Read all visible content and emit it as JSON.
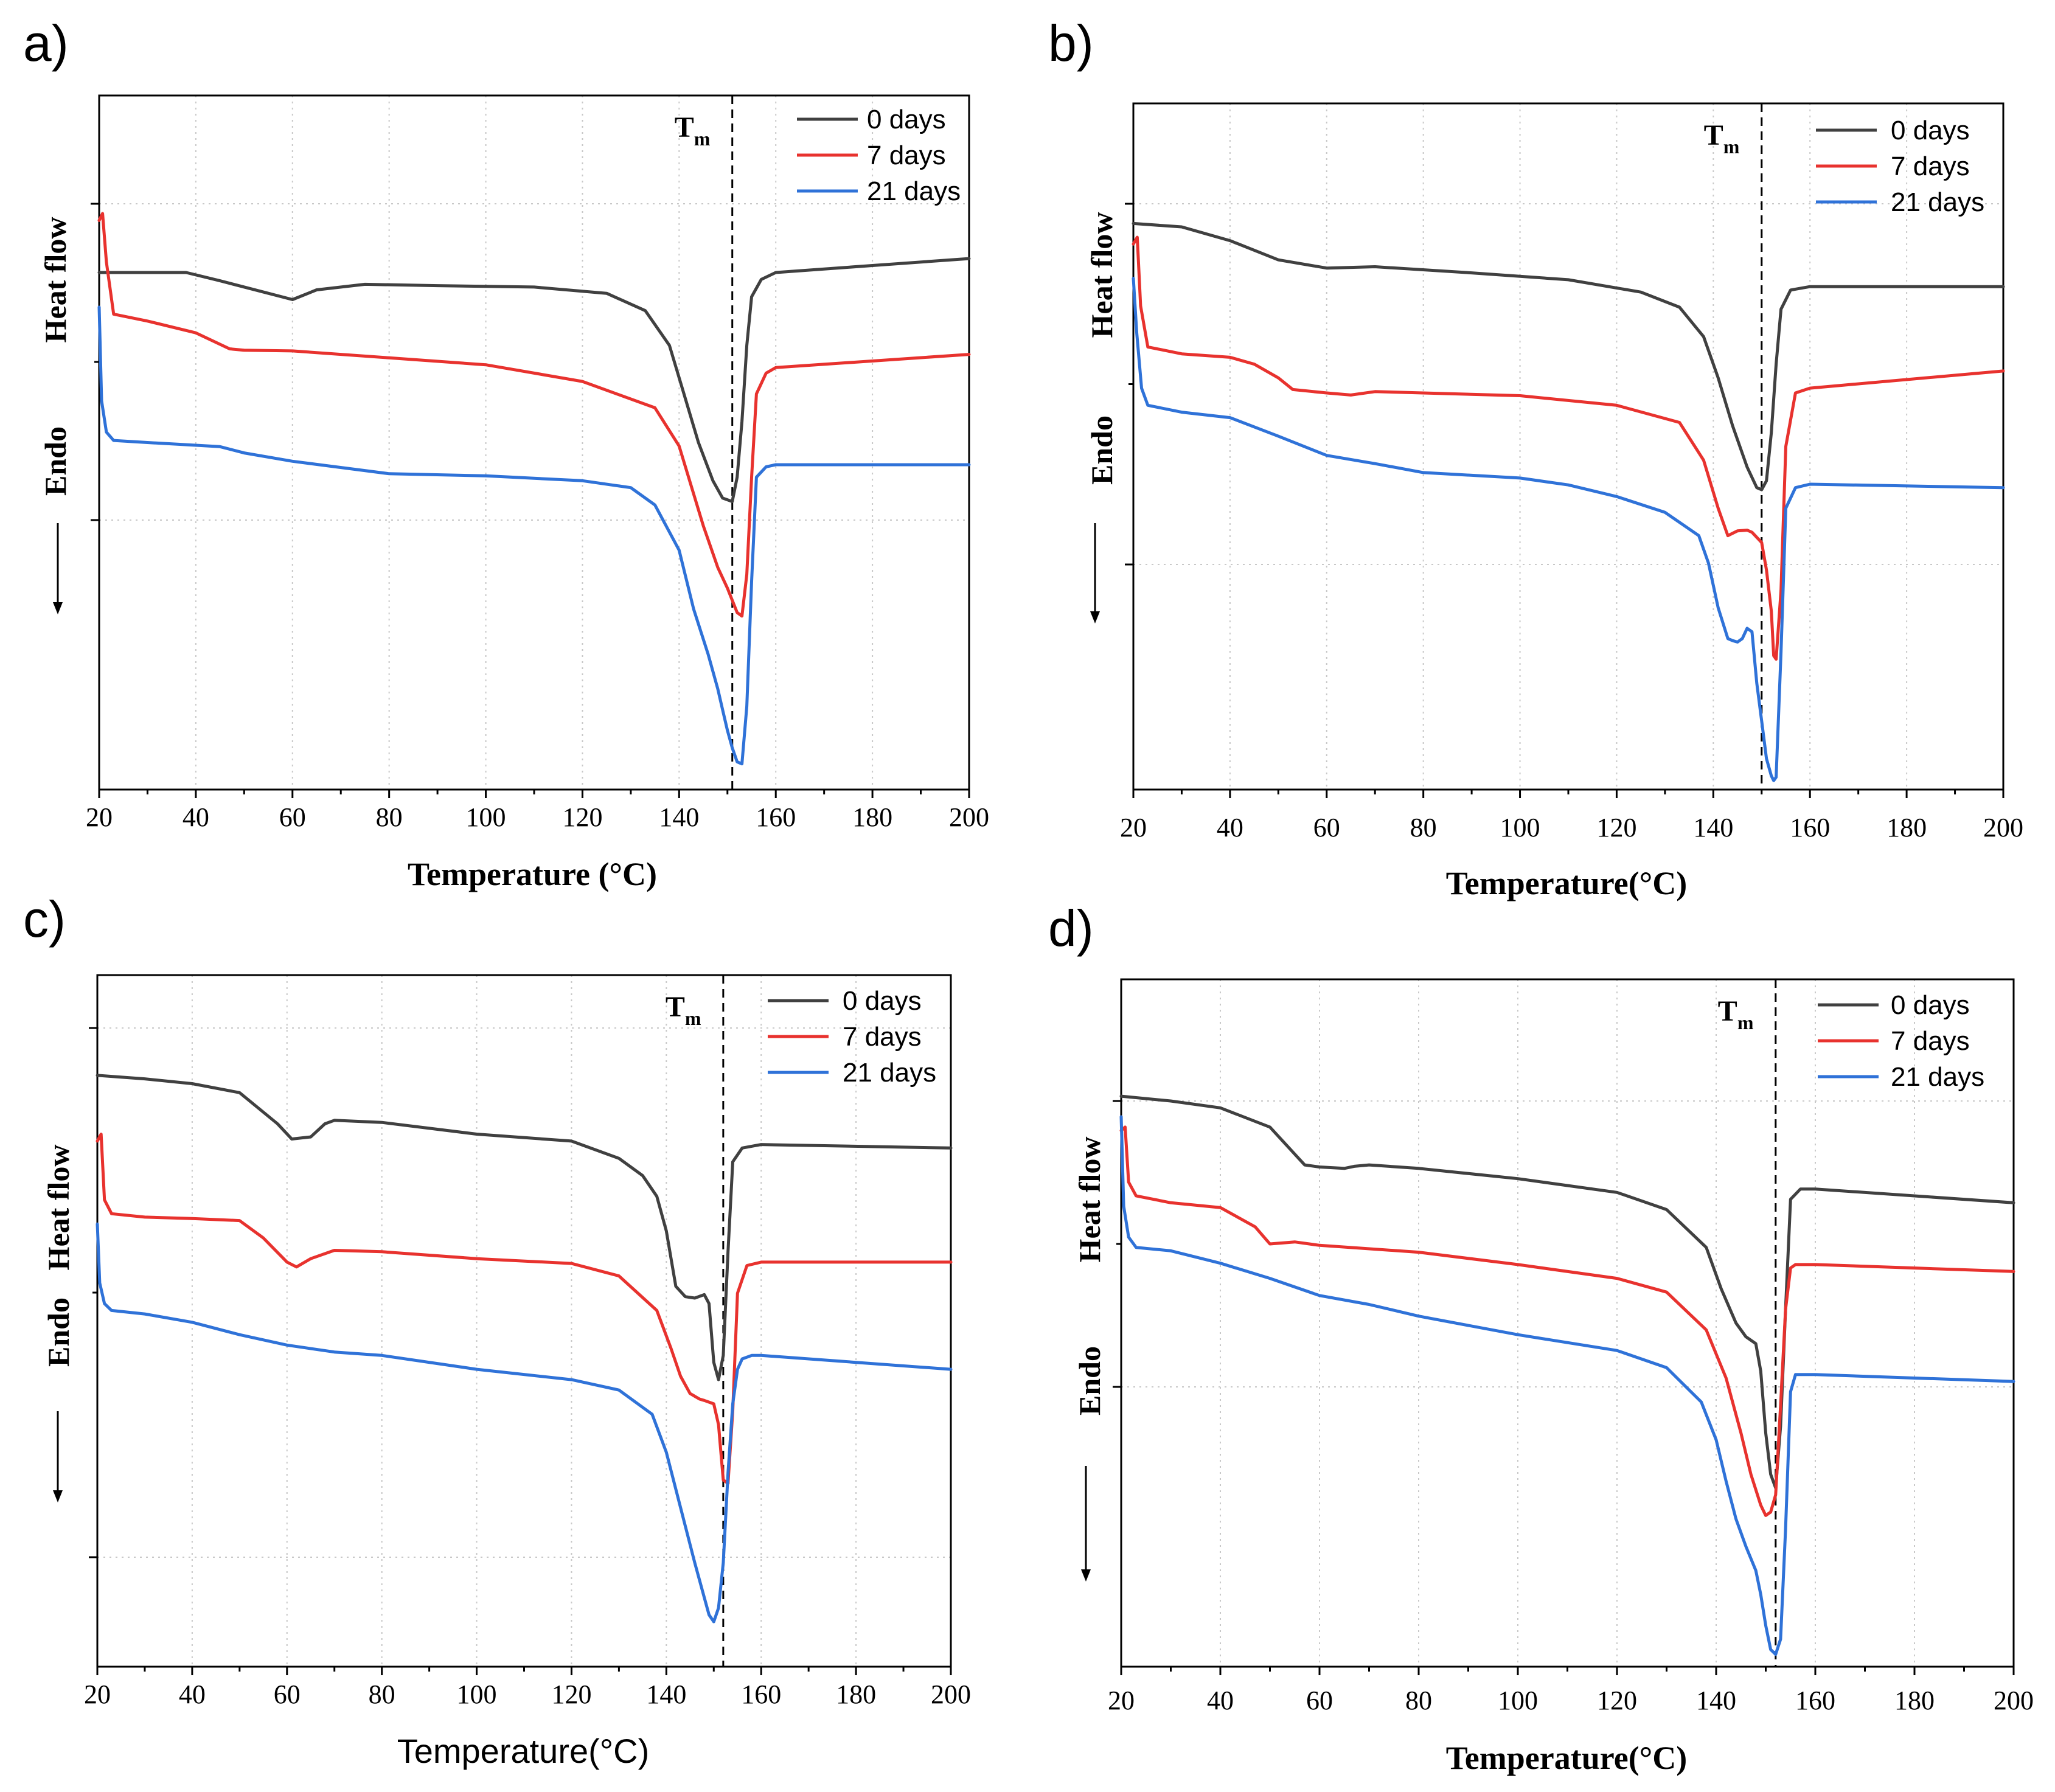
{
  "chart_data": [
    {
      "panel": "a)",
      "type": "line",
      "title": "",
      "xlabel": "Temperature (°C)",
      "ylabel_top": "Heat flow",
      "ylabel_bottom": "Endo",
      "xlim": [
        20,
        200
      ],
      "ylim": [
        0,
        100
      ],
      "xticks": [
        20,
        40,
        60,
        80,
        100,
        120,
        140,
        160,
        180,
        200
      ],
      "tm": {
        "label": "T",
        "sub": "m",
        "x": 151
      },
      "legend_position": "top-right",
      "series": [
        {
          "name": "0 days",
          "color": "#404040",
          "x": [
            20,
            38,
            45,
            55,
            60,
            65,
            75,
            90,
            110,
            125,
            133,
            138,
            141,
            144,
            147,
            149,
            151,
            152,
            153,
            154,
            155,
            157,
            160,
            180,
            200
          ],
          "y": [
            74.5,
            74.5,
            73.3,
            71.5,
            70.6,
            72,
            72.8,
            72.6,
            72.4,
            71.5,
            69,
            64,
            57,
            50,
            44.5,
            42,
            41.5,
            45,
            53,
            64,
            71,
            73.5,
            74.5,
            75.5,
            76.5
          ]
        },
        {
          "name": "7 days",
          "color": "#e8322e",
          "x": [
            20,
            20.7,
            21.5,
            23,
            30,
            40,
            47,
            50,
            60,
            80,
            100,
            120,
            135,
            140,
            145,
            148,
            150,
            152,
            153,
            154,
            155,
            156,
            158,
            160,
            200
          ],
          "y": [
            82,
            83,
            76,
            68.5,
            67.5,
            65.8,
            63.5,
            63.3,
            63.2,
            62.2,
            61.2,
            58.8,
            55,
            49.5,
            38,
            32,
            29,
            25.5,
            25,
            31,
            45,
            57,
            60,
            60.8,
            62.7
          ]
        },
        {
          "name": "21 days",
          "color": "#2f72d8",
          "x": [
            20,
            20.5,
            21.5,
            23,
            30,
            45,
            50,
            60,
            80,
            100,
            120,
            130,
            135,
            140,
            143,
            146,
            148,
            149,
            150,
            151,
            152,
            153,
            154,
            155,
            156,
            158,
            160,
            170,
            200
          ],
          "y": [
            69.5,
            56,
            51.5,
            50.3,
            50,
            49.4,
            48.5,
            47.3,
            45.5,
            45.2,
            44.5,
            43.5,
            41,
            34.5,
            26,
            19.5,
            14.5,
            11.5,
            8.5,
            6,
            4,
            3.7,
            12,
            30,
            45,
            46.5,
            46.8,
            46.8,
            46.8
          ]
        }
      ]
    },
    {
      "panel": "b)",
      "type": "line",
      "title": "",
      "xlabel": "Temperature(°C)",
      "ylabel_top": "Heat flow",
      "ylabel_bottom": "Endo",
      "xlim": [
        20,
        200
      ],
      "ylim": [
        0,
        100
      ],
      "xticks": [
        20,
        40,
        60,
        80,
        100,
        120,
        140,
        160,
        180,
        200
      ],
      "tm": {
        "label": "T",
        "sub": "m",
        "x": 150
      },
      "legend_position": "top-right",
      "series": [
        {
          "name": "0 days",
          "color": "#404040",
          "x": [
            20,
            30,
            40,
            50,
            60,
            70,
            90,
            110,
            125,
            133,
            138,
            141,
            144,
            147,
            149,
            150,
            151,
            152,
            153,
            154,
            156,
            160,
            200
          ],
          "y": [
            82.5,
            82,
            80,
            77.2,
            76,
            76.2,
            75.3,
            74.3,
            72.5,
            70.3,
            66,
            60,
            53,
            47,
            44,
            43.7,
            45,
            52,
            62,
            70,
            72.8,
            73.3,
            73.3
          ]
        },
        {
          "name": "7 days",
          "color": "#e8322e",
          "x": [
            20,
            20.8,
            21.5,
            23,
            30,
            40,
            45,
            50,
            53,
            60,
            65,
            70,
            100,
            120,
            133,
            138,
            141,
            143,
            145,
            147,
            148,
            150,
            151,
            152,
            152.5,
            153,
            154,
            155,
            157,
            160,
            200
          ],
          "y": [
            79.5,
            80.5,
            70.5,
            64.5,
            63.5,
            63,
            62,
            60,
            58.3,
            57.8,
            57.5,
            58,
            57.4,
            56,
            53.5,
            48,
            41,
            37,
            37.7,
            37.8,
            37.5,
            36,
            32,
            26,
            19.5,
            19,
            29,
            50,
            57.8,
            58.5,
            61
          ]
        },
        {
          "name": "21 days",
          "color": "#2f72d8",
          "x": [
            20,
            20.7,
            21.7,
            23,
            30,
            40,
            50,
            60,
            70,
            80,
            100,
            110,
            120,
            130,
            137,
            139,
            141,
            143,
            144,
            145,
            146,
            147,
            148,
            149,
            150,
            151,
            152,
            152.5,
            153,
            154,
            155,
            157,
            160,
            200
          ],
          "y": [
            74.5,
            66.5,
            58.5,
            56,
            55,
            54.2,
            51.5,
            48.7,
            47.5,
            46.2,
            45.4,
            44.4,
            42.7,
            40.4,
            37,
            33,
            26.5,
            22,
            21.7,
            21.5,
            22,
            23.5,
            23,
            15.5,
            10,
            4.5,
            2,
            1.3,
            1.8,
            20,
            41,
            44,
            44.5,
            44
          ]
        }
      ]
    },
    {
      "panel": "c)",
      "type": "line",
      "title": "",
      "xlabel": "Temperature(°C)",
      "ylabel_top": "Heat flow",
      "ylabel_bottom": "Endo",
      "xlim": [
        20,
        200
      ],
      "ylim": [
        0,
        100
      ],
      "xticks": [
        20,
        40,
        60,
        80,
        100,
        120,
        140,
        160,
        180,
        200
      ],
      "tm": {
        "label": "T",
        "sub": "m",
        "x": 152
      },
      "legend_position": "top-right",
      "series": [
        {
          "name": "0 days",
          "color": "#404040",
          "x": [
            20,
            30,
            40,
            50,
            58,
            61,
            65,
            68,
            70,
            80,
            100,
            120,
            130,
            135,
            138,
            140,
            142,
            144,
            146,
            148,
            149,
            150,
            151,
            152,
            153,
            154,
            156,
            160,
            200
          ],
          "y": [
            85.5,
            85,
            84.3,
            83,
            78.5,
            76.3,
            76.6,
            78.5,
            79,
            78.7,
            77,
            76,
            73.5,
            71,
            68,
            63,
            55,
            53.5,
            53.3,
            53.8,
            52.5,
            44,
            41.5,
            45,
            60,
            73,
            75,
            75.5,
            75
          ]
        },
        {
          "name": "7 days",
          "color": "#e8322e",
          "x": [
            20,
            20.8,
            21.5,
            23,
            30,
            40,
            50,
            55,
            60,
            62,
            65,
            70,
            80,
            100,
            120,
            130,
            138,
            141,
            143,
            145,
            147,
            148,
            150,
            151,
            152,
            153,
            154,
            155,
            157,
            160,
            200
          ],
          "y": [
            76,
            77,
            67.5,
            65.5,
            65,
            64.8,
            64.5,
            62,
            58.5,
            57.8,
            59,
            60.2,
            60,
            59,
            58.3,
            56.5,
            51.5,
            46,
            42,
            39.5,
            38.7,
            38.5,
            38,
            35,
            27,
            26.5,
            37,
            54,
            58,
            58.5,
            58.5
          ]
        },
        {
          "name": "21 days",
          "color": "#2f72d8",
          "x": [
            20,
            20.5,
            21.5,
            23,
            30,
            40,
            50,
            60,
            70,
            80,
            100,
            120,
            130,
            137,
            140,
            143,
            146,
            148,
            149,
            150,
            151,
            152,
            153,
            154,
            155,
            156,
            158,
            160,
            200
          ],
          "y": [
            64,
            55.5,
            52.5,
            51.5,
            51,
            49.8,
            48,
            46.5,
            45.5,
            45,
            43,
            41.5,
            40,
            36.5,
            31,
            23,
            15,
            10,
            7.5,
            6.5,
            8.5,
            15,
            28,
            38,
            43,
            44.5,
            45,
            45,
            43
          ]
        }
      ]
    },
    {
      "panel": "d)",
      "type": "line",
      "title": "",
      "xlabel": "Temperature(°C)",
      "ylabel_top": "Heat flow",
      "ylabel_bottom": "Endo",
      "xlim": [
        20,
        200
      ],
      "ylim": [
        0,
        100
      ],
      "xticks": [
        20,
        40,
        60,
        80,
        100,
        120,
        140,
        160,
        180,
        200
      ],
      "tm": {
        "label": "T",
        "sub": "m",
        "x": 152
      },
      "legend_position": "top-right",
      "series": [
        {
          "name": "0 days",
          "color": "#404040",
          "x": [
            20,
            30,
            40,
            50,
            57,
            60,
            65,
            67,
            70,
            80,
            100,
            120,
            130,
            138,
            141,
            144,
            146,
            148,
            149,
            150,
            151,
            152,
            153,
            154,
            155,
            157,
            160,
            200
          ],
          "y": [
            83,
            82.3,
            81.3,
            78.5,
            73,
            72.7,
            72.5,
            72.8,
            73,
            72.5,
            71,
            69,
            66.5,
            61,
            55,
            50,
            48,
            47,
            43,
            34,
            28,
            26,
            35,
            52,
            68,
            69.5,
            69.5,
            67.5
          ]
        },
        {
          "name": "7 days",
          "color": "#e8322e",
          "x": [
            20,
            20.8,
            21.5,
            23,
            30,
            40,
            47,
            50,
            55,
            60,
            80,
            100,
            120,
            130,
            138,
            142,
            145,
            147,
            149,
            150,
            151,
            152,
            153,
            154,
            155,
            156,
            157,
            160,
            200
          ],
          "y": [
            78,
            78.5,
            70.5,
            68.5,
            67.5,
            66.8,
            64,
            61.5,
            61.8,
            61.3,
            60.3,
            58.5,
            56.5,
            54.5,
            49,
            42,
            34,
            28,
            23.5,
            22,
            22.5,
            25,
            38,
            52,
            58,
            58.5,
            58.5,
            58.5,
            57.5
          ]
        },
        {
          "name": "21 days",
          "color": "#2f72d8",
          "x": [
            20,
            20.5,
            21.5,
            23,
            30,
            40,
            50,
            60,
            70,
            80,
            100,
            120,
            130,
            137,
            140,
            142,
            144,
            146,
            148,
            149,
            150,
            151,
            152,
            153,
            154,
            155,
            156,
            158,
            160,
            200
          ],
          "y": [
            80,
            67,
            62.5,
            61,
            60.5,
            58.7,
            56.5,
            54,
            52.7,
            51,
            48.3,
            46,
            43.5,
            38.5,
            33,
            27,
            21.5,
            17.5,
            14,
            10.5,
            6,
            2.5,
            1.8,
            4,
            20,
            40,
            42.5,
            42.5,
            42.5,
            41.5
          ]
        }
      ]
    }
  ]
}
